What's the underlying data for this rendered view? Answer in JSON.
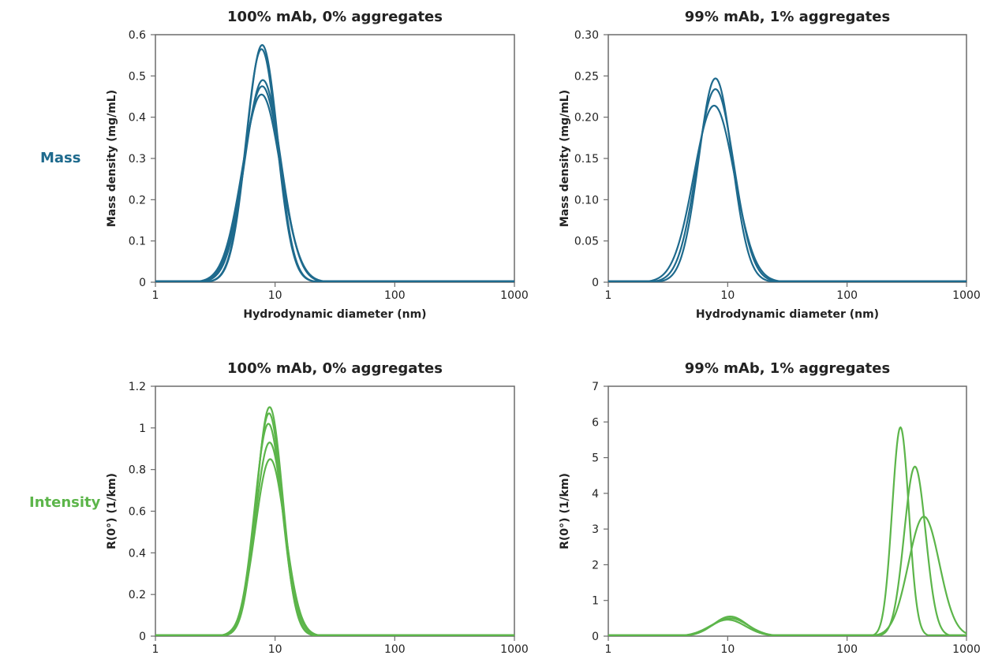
{
  "row_labels": {
    "mass": "Mass",
    "intensity": "Intensity"
  },
  "colors": {
    "mass": "#1e6a8d",
    "intensity": "#5cb54a"
  },
  "chart_data": [
    {
      "type": "line",
      "title": "100% mAb, 0% aggregates",
      "xlabel": "Hydrodynamic diameter (nm)",
      "ylabel": "Mass density (mg/mL)",
      "xscale": "log",
      "xlim": [
        1,
        1000
      ],
      "ylim": [
        0,
        0.6
      ],
      "xticks": [
        "1",
        "10",
        "100",
        "1000"
      ],
      "yticks": [
        "0",
        "0.1",
        "0.2",
        "0.3",
        "0.4",
        "0.5",
        "0.6"
      ],
      "curve_shape": "lognormal",
      "color": "mass",
      "series": [
        {
          "peak_x": 7.8,
          "peak_y": 0.575,
          "sigma": 0.13
        },
        {
          "peak_x": 7.7,
          "peak_y": 0.565,
          "sigma": 0.13
        },
        {
          "peak_x": 7.9,
          "peak_y": 0.49,
          "sigma": 0.15
        },
        {
          "peak_x": 7.8,
          "peak_y": 0.475,
          "sigma": 0.155
        },
        {
          "peak_x": 7.7,
          "peak_y": 0.455,
          "sigma": 0.16
        }
      ]
    },
    {
      "type": "line",
      "title": "99% mAb, 1% aggregates",
      "xlabel": "Hydrodynamic diameter (nm)",
      "ylabel": "Mass density (mg/mL)",
      "xscale": "log",
      "xlim": [
        1,
        1000
      ],
      "ylim": [
        0,
        0.3
      ],
      "xticks": [
        "1",
        "10",
        "100",
        "1000"
      ],
      "yticks": [
        "0",
        "0.05",
        "0.10",
        "0.15",
        "0.20",
        "0.25",
        "0.30"
      ],
      "curve_shape": "lognormal",
      "color": "mass",
      "series": [
        {
          "peak_x": 7.9,
          "peak_y": 0.247,
          "sigma": 0.14
        },
        {
          "peak_x": 7.9,
          "peak_y": 0.234,
          "sigma": 0.155
        },
        {
          "peak_x": 7.7,
          "peak_y": 0.214,
          "sigma": 0.17
        }
      ]
    },
    {
      "type": "line",
      "title": "100% mAb, 0% aggregates",
      "xlabel": "",
      "ylabel": "R(0°) (1/km)",
      "xscale": "log",
      "xlim": [
        1,
        1000
      ],
      "ylim": [
        0,
        1.2
      ],
      "xticks": [
        "1",
        "10",
        "100",
        "1000"
      ],
      "yticks": [
        "0",
        "0.2",
        "0.4",
        "0.6",
        "0.8",
        "1",
        "1.2"
      ],
      "curve_shape": "lognormal",
      "color": "intensity",
      "series": [
        {
          "peak_x": 9.0,
          "peak_y": 1.1,
          "sigma": 0.11
        },
        {
          "peak_x": 8.9,
          "peak_y": 1.07,
          "sigma": 0.11
        },
        {
          "peak_x": 8.8,
          "peak_y": 1.02,
          "sigma": 0.115
        },
        {
          "peak_x": 9.0,
          "peak_y": 0.93,
          "sigma": 0.12
        },
        {
          "peak_x": 9.1,
          "peak_y": 0.85,
          "sigma": 0.125
        }
      ]
    },
    {
      "type": "line",
      "title": "99% mAb, 1% aggregates",
      "xlabel": "",
      "ylabel": "R(0°) (1/km)",
      "xscale": "log",
      "xlim": [
        1,
        1000
      ],
      "ylim": [
        0,
        7
      ],
      "xticks": [
        "1",
        "10",
        "100",
        "1000"
      ],
      "yticks": [
        "0",
        "1",
        "2",
        "3",
        "4",
        "5",
        "6",
        "7"
      ],
      "curve_shape": "lognormal_sum",
      "color": "intensity",
      "series": [
        {
          "peaks": [
            {
              "peak_x": 10.5,
              "peak_y": 0.55,
              "sigma": 0.14
            },
            {
              "peak_x": 280,
              "peak_y": 5.85,
              "sigma": 0.07
            }
          ]
        },
        {
          "peaks": [
            {
              "peak_x": 10.5,
              "peak_y": 0.5,
              "sigma": 0.15
            },
            {
              "peak_x": 370,
              "peak_y": 4.75,
              "sigma": 0.09
            }
          ]
        },
        {
          "peaks": [
            {
              "peak_x": 10.0,
              "peak_y": 0.46,
              "sigma": 0.15
            },
            {
              "peak_x": 440,
              "peak_y": 3.35,
              "sigma": 0.13
            }
          ]
        }
      ]
    }
  ]
}
